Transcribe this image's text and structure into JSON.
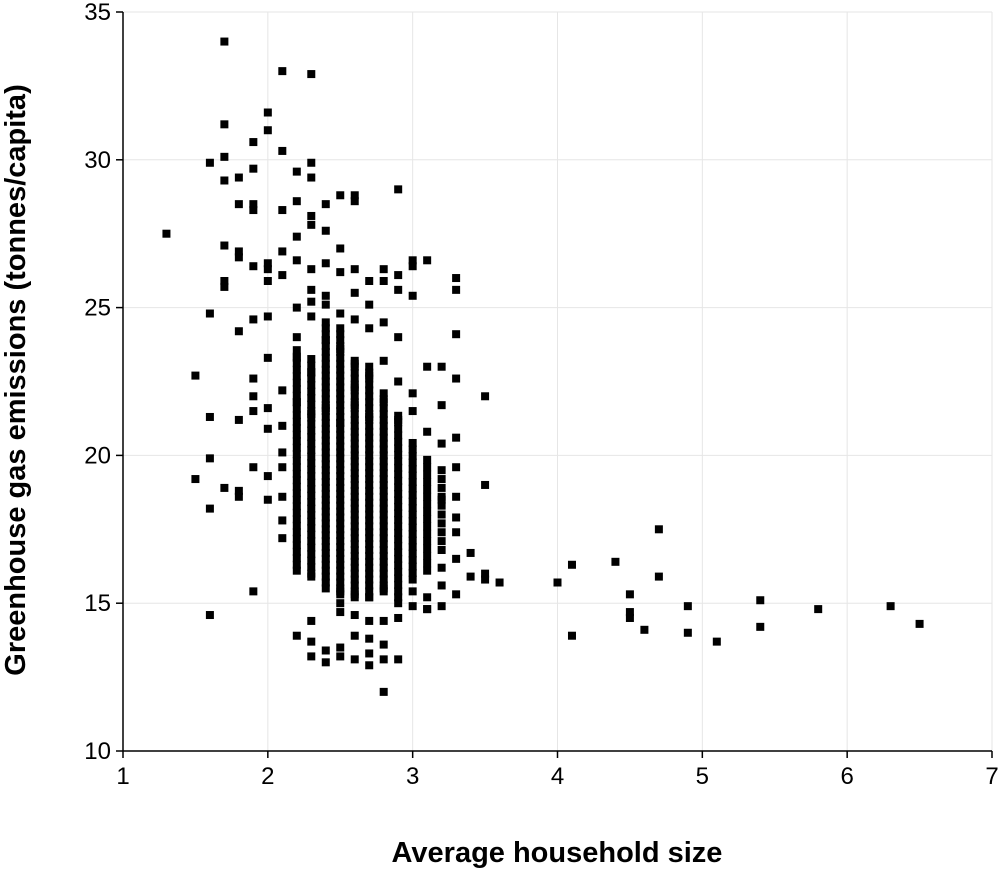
{
  "chart_data": {
    "type": "scatter",
    "title": "",
    "xlabel": "Average household size",
    "ylabel": "Greenhouse gas emissions (tonnes/capita)",
    "xlim": [
      1,
      7
    ],
    "ylim": [
      10,
      35
    ],
    "xticks": [
      1,
      2,
      3,
      4,
      5,
      6,
      7
    ],
    "yticks": [
      10,
      15,
      20,
      25,
      30,
      35
    ],
    "grid": true,
    "legend": "none",
    "marker": "square",
    "colors": {
      "marker": "#000000",
      "grid": "#e6e6e6",
      "axis": "#000000"
    },
    "series": [
      {
        "points": [
          [
            1.7,
            34.0
          ],
          [
            2.1,
            33.0
          ],
          [
            2.3,
            32.9
          ],
          [
            2.0,
            31.6
          ],
          [
            1.7,
            31.2
          ],
          [
            2.0,
            31.0
          ],
          [
            1.9,
            30.6
          ],
          [
            2.1,
            30.3
          ],
          [
            1.6,
            29.9
          ],
          [
            1.7,
            30.1
          ],
          [
            2.3,
            29.9
          ],
          [
            1.9,
            29.7
          ],
          [
            1.8,
            29.4
          ],
          [
            1.7,
            29.3
          ],
          [
            2.2,
            29.6
          ],
          [
            2.3,
            29.4
          ],
          [
            2.9,
            29.0
          ],
          [
            2.5,
            28.8
          ],
          [
            2.6,
            28.8
          ],
          [
            2.6,
            28.6
          ],
          [
            1.8,
            28.5
          ],
          [
            1.9,
            28.5
          ],
          [
            2.2,
            28.6
          ],
          [
            2.4,
            28.5
          ],
          [
            1.9,
            28.3
          ],
          [
            2.1,
            28.3
          ],
          [
            2.3,
            28.1
          ],
          [
            1.3,
            27.5
          ],
          [
            2.3,
            27.8
          ],
          [
            2.4,
            27.6
          ],
          [
            2.2,
            27.4
          ],
          [
            1.7,
            27.1
          ],
          [
            2.5,
            27.0
          ],
          [
            1.8,
            26.9
          ],
          [
            2.1,
            26.9
          ],
          [
            1.8,
            26.7
          ],
          [
            2.0,
            26.5
          ],
          [
            2.0,
            26.3
          ],
          [
            1.9,
            26.4
          ],
          [
            2.2,
            26.6
          ],
          [
            2.4,
            26.5
          ],
          [
            2.3,
            26.3
          ],
          [
            2.6,
            26.3
          ],
          [
            2.9,
            26.1
          ],
          [
            2.8,
            26.3
          ],
          [
            3.0,
            26.6
          ],
          [
            3.1,
            26.6
          ],
          [
            3.0,
            26.4
          ],
          [
            1.7,
            25.9
          ],
          [
            1.7,
            25.7
          ],
          [
            2.0,
            25.9
          ],
          [
            2.1,
            26.1
          ],
          [
            2.5,
            26.2
          ],
          [
            2.7,
            25.9
          ],
          [
            2.8,
            25.9
          ],
          [
            3.3,
            26.0
          ],
          [
            3.3,
            25.6
          ],
          [
            2.3,
            25.6
          ],
          [
            2.4,
            25.4
          ],
          [
            2.6,
            25.5
          ],
          [
            2.9,
            25.6
          ],
          [
            3.0,
            25.4
          ],
          [
            1.6,
            24.8
          ],
          [
            1.8,
            24.2
          ],
          [
            1.9,
            24.6
          ],
          [
            2.0,
            24.7
          ],
          [
            2.5,
            24.3
          ],
          [
            2.6,
            24.6
          ],
          [
            2.8,
            24.5
          ],
          [
            2.9,
            24.0
          ],
          [
            3.3,
            24.1
          ],
          [
            2.7,
            24.3
          ],
          [
            1.5,
            22.7
          ],
          [
            1.9,
            22.6
          ],
          [
            2.0,
            23.3
          ],
          [
            2.6,
            23.1
          ],
          [
            2.8,
            23.2
          ],
          [
            3.1,
            23.0
          ],
          [
            3.2,
            23.0
          ],
          [
            3.3,
            22.6
          ],
          [
            3.5,
            22.0
          ],
          [
            1.9,
            22.0
          ],
          [
            2.0,
            21.6
          ],
          [
            1.9,
            21.5
          ],
          [
            1.8,
            21.2
          ],
          [
            1.6,
            21.3
          ],
          [
            2.1,
            21.0
          ],
          [
            2.0,
            20.9
          ],
          [
            3.0,
            21.5
          ],
          [
            3.2,
            21.7
          ],
          [
            3.3,
            20.6
          ],
          [
            3.2,
            20.4
          ],
          [
            1.6,
            19.9
          ],
          [
            1.9,
            19.6
          ],
          [
            2.0,
            19.3
          ],
          [
            1.5,
            19.2
          ],
          [
            1.7,
            18.9
          ],
          [
            1.8,
            18.8
          ],
          [
            1.8,
            18.6
          ],
          [
            2.0,
            18.5
          ],
          [
            3.5,
            19.0
          ],
          [
            3.3,
            18.6
          ],
          [
            1.6,
            18.2
          ],
          [
            3.4,
            16.7
          ],
          [
            3.4,
            15.9
          ],
          [
            3.5,
            16.0
          ],
          [
            3.5,
            15.8
          ],
          [
            3.6,
            15.7
          ],
          [
            3.3,
            15.3
          ],
          [
            3.2,
            14.9
          ],
          [
            3.1,
            14.8
          ],
          [
            4.0,
            15.7
          ],
          [
            4.1,
            16.3
          ],
          [
            4.4,
            16.4
          ],
          [
            4.5,
            15.3
          ],
          [
            4.5,
            14.7
          ],
          [
            4.5,
            14.5
          ],
          [
            4.1,
            13.9
          ],
          [
            4.6,
            14.1
          ],
          [
            4.7,
            17.5
          ],
          [
            4.7,
            15.9
          ],
          [
            4.9,
            14.9
          ],
          [
            4.9,
            14.0
          ],
          [
            5.1,
            13.7
          ],
          [
            5.4,
            15.1
          ],
          [
            5.4,
            14.2
          ],
          [
            5.8,
            14.8
          ],
          [
            6.3,
            14.9
          ],
          [
            6.5,
            14.3
          ],
          [
            1.6,
            14.6
          ],
          [
            1.9,
            15.4
          ],
          [
            2.2,
            13.9
          ],
          [
            2.3,
            14.4
          ],
          [
            2.3,
            13.7
          ],
          [
            2.3,
            13.2
          ],
          [
            2.4,
            13.4
          ],
          [
            2.4,
            13.0
          ],
          [
            2.5,
            14.7
          ],
          [
            2.5,
            13.5
          ],
          [
            2.5,
            13.2
          ],
          [
            2.6,
            13.9
          ],
          [
            2.6,
            13.1
          ],
          [
            2.7,
            13.8
          ],
          [
            2.7,
            13.3
          ],
          [
            2.7,
            12.9
          ],
          [
            2.8,
            13.6
          ],
          [
            2.8,
            13.1
          ],
          [
            2.8,
            14.4
          ],
          [
            2.8,
            12.0
          ],
          [
            2.9,
            13.1
          ],
          [
            2.6,
            14.6
          ],
          [
            2.7,
            14.4
          ],
          [
            2.9,
            14.5
          ],
          [
            2.2,
            21.8
          ],
          [
            2.3,
            21.4
          ],
          [
            2.4,
            21.6
          ],
          [
            2.5,
            21.1
          ],
          [
            2.6,
            21.7
          ],
          [
            2.7,
            21.3
          ],
          [
            2.8,
            21.9
          ],
          [
            2.9,
            21.2
          ],
          [
            3.1,
            20.8
          ],
          [
            2.5,
            23.6
          ],
          [
            2.6,
            22.3
          ],
          [
            2.7,
            22.7
          ],
          [
            2.8,
            22.1
          ],
          [
            2.9,
            22.5
          ],
          [
            3.0,
            22.1
          ],
          [
            2.2,
            23.3
          ],
          [
            2.4,
            23.9
          ],
          [
            2.3,
            22.8
          ],
          [
            2.1,
            22.2
          ],
          [
            2.2,
            24.0
          ],
          [
            2.3,
            24.7
          ],
          [
            2.2,
            25.0
          ],
          [
            2.4,
            25.1
          ],
          [
            2.5,
            24.8
          ],
          [
            2.3,
            25.2
          ],
          [
            2.7,
            25.1
          ],
          [
            2.1,
            18.6
          ],
          [
            2.1,
            17.8
          ],
          [
            2.1,
            17.2
          ],
          [
            2.1,
            19.6
          ],
          [
            2.1,
            20.1
          ],
          [
            3.0,
            15.4
          ],
          [
            3.1,
            15.2
          ],
          [
            3.2,
            15.6
          ],
          [
            3.2,
            16.2
          ],
          [
            3.3,
            16.5
          ],
          [
            3.3,
            17.4
          ],
          [
            3.3,
            17.9
          ],
          [
            3.3,
            19.6
          ],
          [
            3.2,
            18.5
          ],
          [
            2.2,
            16.1
          ],
          [
            2.3,
            15.9
          ],
          [
            2.4,
            15.5
          ],
          [
            2.5,
            15.4
          ],
          [
            2.5,
            15.0
          ],
          [
            2.6,
            15.3
          ],
          [
            2.7,
            15.2
          ],
          [
            2.8,
            15.5
          ],
          [
            2.9,
            15.0
          ],
          [
            3.0,
            14.9
          ],
          [
            3.1,
            14.8
          ],
          [
            2.9,
            15.2
          ]
        ]
      }
    ],
    "dense_columns": [
      {
        "x": 2.2,
        "y_min": 16.3,
        "y_max": 23.6,
        "step": 0.22
      },
      {
        "x": 2.3,
        "y_min": 16.0,
        "y_max": 23.4,
        "step": 0.22
      },
      {
        "x": 2.4,
        "y_min": 15.7,
        "y_max": 24.6,
        "step": 0.2
      },
      {
        "x": 2.5,
        "y_min": 15.3,
        "y_max": 24.1,
        "step": 0.2
      },
      {
        "x": 2.6,
        "y_min": 15.2,
        "y_max": 23.2,
        "step": 0.2
      },
      {
        "x": 2.7,
        "y_min": 15.2,
        "y_max": 23.0,
        "step": 0.2
      },
      {
        "x": 2.8,
        "y_min": 15.4,
        "y_max": 21.9,
        "step": 0.2
      },
      {
        "x": 2.9,
        "y_min": 15.4,
        "y_max": 21.5,
        "step": 0.22
      },
      {
        "x": 3.0,
        "y_min": 15.8,
        "y_max": 20.5,
        "step": 0.22
      },
      {
        "x": 3.1,
        "y_min": 16.1,
        "y_max": 20.0,
        "step": 0.25
      },
      {
        "x": 3.2,
        "y_min": 16.8,
        "y_max": 19.5,
        "step": 0.3
      }
    ]
  }
}
